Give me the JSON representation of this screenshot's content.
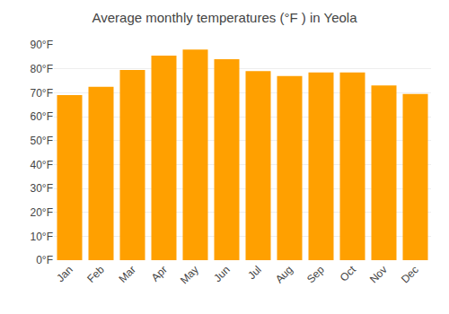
{
  "chart_data": {
    "type": "bar",
    "title": "Average monthly temperatures (°F ) in Yeola",
    "categories": [
      "Jan",
      "Feb",
      "Mar",
      "Apr",
      "May",
      "Jun",
      "Jul",
      "Aug",
      "Sep",
      "Oct",
      "Nov",
      "Dec"
    ],
    "values": [
      69,
      72.5,
      79.5,
      85.5,
      88,
      84,
      79,
      77,
      78.5,
      78.5,
      73,
      69.5
    ],
    "color": "#FFA000",
    "ylim": [
      0,
      90
    ],
    "yticks": [
      {
        "value": 0,
        "label": "0°F"
      },
      {
        "value": 10,
        "label": "10°F"
      },
      {
        "value": 20,
        "label": "20°F"
      },
      {
        "value": 30,
        "label": "30°F"
      },
      {
        "value": 40,
        "label": "40°F"
      },
      {
        "value": 50,
        "label": "50°F"
      },
      {
        "value": 60,
        "label": "60°F"
      },
      {
        "value": 70,
        "label": "70°F"
      },
      {
        "value": 80,
        "label": "80°F"
      },
      {
        "value": 90,
        "label": "90°F"
      }
    ],
    "grid": true
  }
}
